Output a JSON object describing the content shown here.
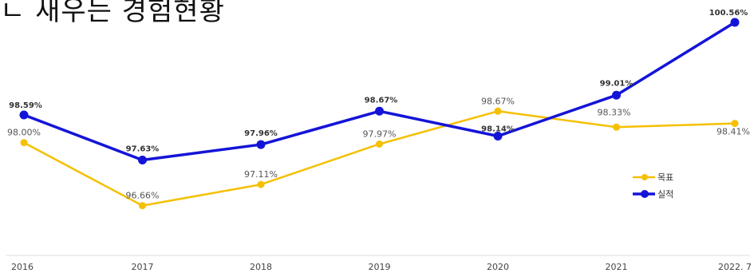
{
  "title_fragment": "ㄴ 새우는 경험현황",
  "chart_data": {
    "type": "line",
    "title": "",
    "xlabel": "",
    "ylabel": "",
    "categories": [
      "2016",
      "2017",
      "2018",
      "2019",
      "2020",
      "2021",
      "2022. 7"
    ],
    "ylim": [
      95.6,
      100.9
    ],
    "grid": false,
    "legend_position": "right",
    "series": [
      {
        "name": "목표",
        "color": "#f5c000",
        "values": [
          98.0,
          96.66,
          97.11,
          97.97,
          98.67,
          98.33,
          98.41
        ],
        "labels": [
          "98.00%",
          "96.66%",
          "97.11%",
          "97.97%",
          "98.67%",
          "98.33%",
          "98.41%"
        ]
      },
      {
        "name": "실적",
        "color": "#1414d8",
        "values": [
          98.59,
          97.63,
          97.96,
          98.67,
          98.14,
          99.01,
          100.56
        ],
        "labels": [
          "98.59%",
          "97.63%",
          "97.96%",
          "98.67%",
          "98.14%",
          "99.01%",
          "100.56%"
        ]
      }
    ]
  }
}
